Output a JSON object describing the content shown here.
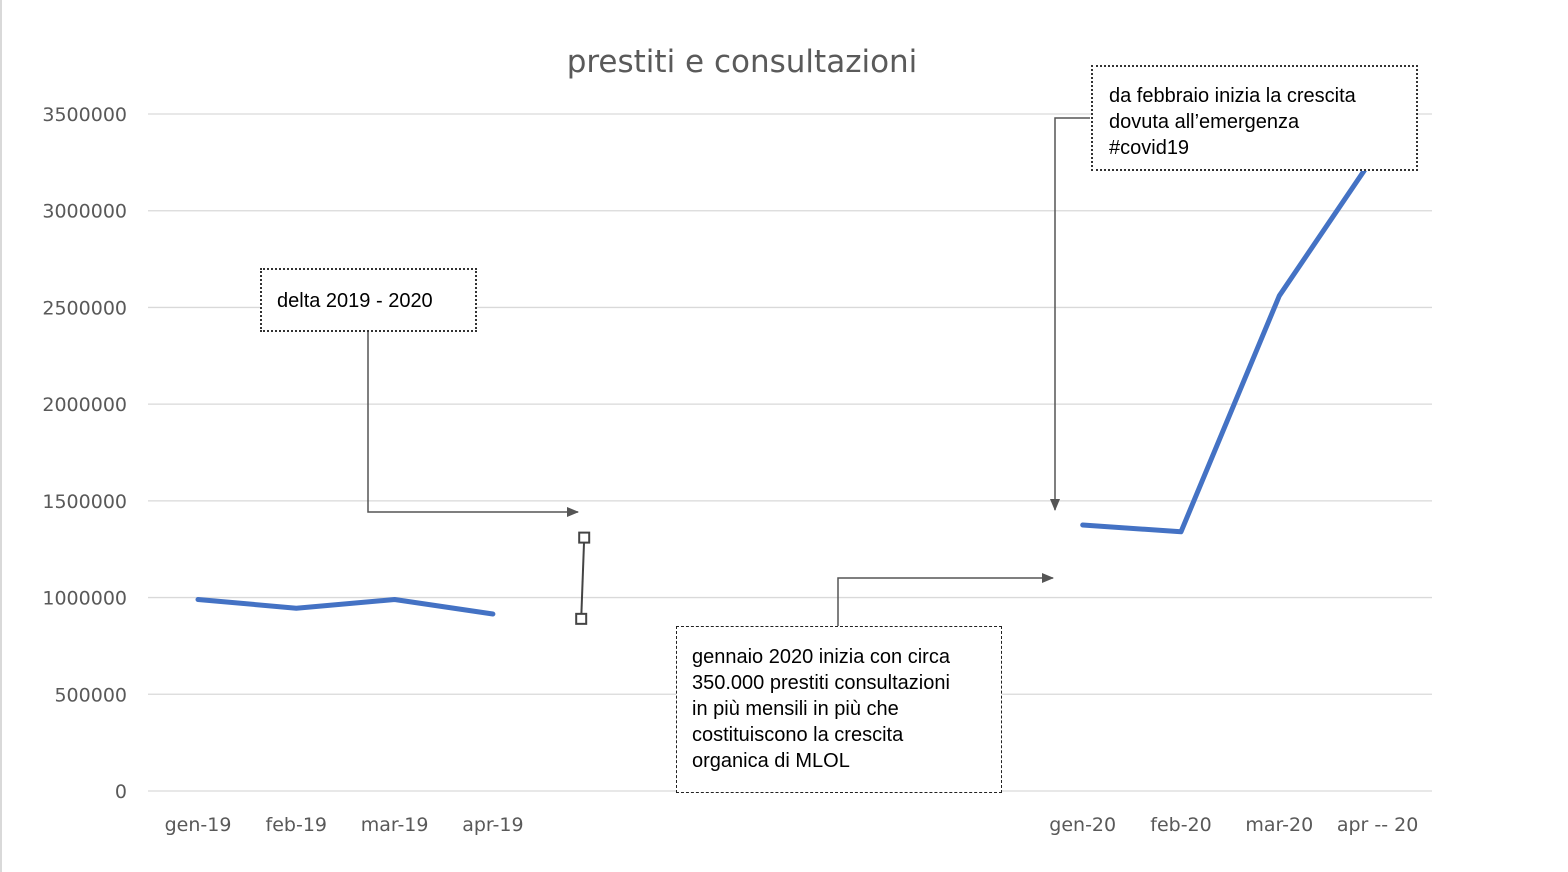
{
  "chart_data": {
    "type": "line",
    "title": "prestiti e consultazioni",
    "xlabel": "",
    "ylabel": "",
    "ylim": [
      0,
      3500000
    ],
    "yticks": [
      "0",
      "500000",
      "1000000",
      "1500000",
      "2000000",
      "2500000",
      "3000000",
      "3500000"
    ],
    "grid": true,
    "legend": "none",
    "categories": [
      "gen-19",
      "feb-19",
      "mar-19",
      "apr-19",
      "",
      "",
      "",
      "",
      "",
      "gen-20",
      "feb-20",
      "mar-20",
      "apr -- 20"
    ],
    "series": [
      {
        "color": "#4472c4",
        "segments": [
          {
            "x_index": [
              0,
              1,
              2,
              3
            ],
            "values": [
              990000,
              945000,
              990000,
              915000
            ]
          },
          {
            "x_index": [
              9,
              10,
              11,
              12
            ],
            "values": [
              1375000,
              1340000,
              2560000,
              3310000
            ]
          }
        ]
      }
    ],
    "delta_marker": {
      "x_index": 4,
      "low": 890000,
      "high": 1310000
    },
    "annotations": [
      {
        "id": "delta",
        "lines": [
          "delta 2019 - 2020"
        ]
      },
      {
        "id": "covid",
        "lines": [
          "da febbraio inizia la crescita",
          "dovuta all’emergenza",
          "#covid19"
        ]
      },
      {
        "id": "gennaio",
        "lines": [
          "gennaio 2020 inizia con circa",
          "350.000 prestiti consultazioni",
          "in più mensili in più che",
          "costituiscono  la crescita",
          "organica di MLOL"
        ]
      }
    ]
  },
  "colors": {
    "line": "#4472c4",
    "grid": "#d9d9d9",
    "text": "#595959",
    "arrow": "#555555"
  }
}
